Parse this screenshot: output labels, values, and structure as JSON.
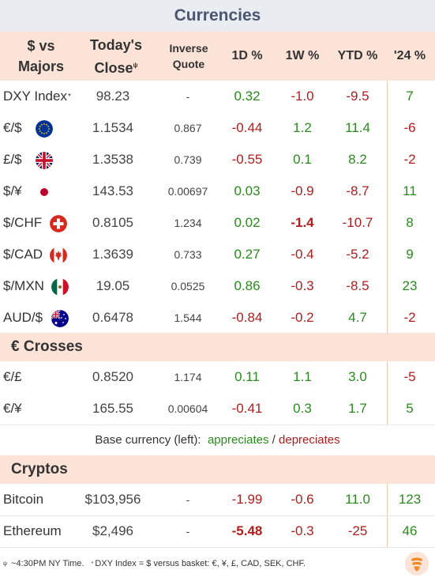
{
  "title": "Currencies",
  "header": {
    "col1": [
      "$ vs",
      "Majors"
    ],
    "col2": [
      "Today's",
      "Close"
    ],
    "col2_sup": "ψ",
    "col3": [
      "Inverse",
      "Quote"
    ],
    "col4": "1D %",
    "col5": "1W %",
    "col6": "YTD %",
    "col7": "'24 %"
  },
  "majors": [
    {
      "label": "DXY Index",
      "sup": "*",
      "flag": "",
      "close": "98.23",
      "inverse": "-",
      "d1": "0.32",
      "w1": "-1.0",
      "ytd": "-9.5",
      "y24": "7",
      "c": [
        "green",
        "red",
        "red",
        "green"
      ]
    },
    {
      "label": "€/$",
      "flag": "eu",
      "close": "1.1534",
      "inverse": "0.867",
      "d1": "-0.44",
      "w1": "1.2",
      "ytd": "11.4",
      "y24": "-6",
      "c": [
        "red",
        "green",
        "green",
        "red"
      ]
    },
    {
      "label": "£/$",
      "flag": "uk",
      "close": "1.3538",
      "inverse": "0.739",
      "d1": "-0.55",
      "w1": "0.1",
      "ytd": "8.2",
      "y24": "-2",
      "c": [
        "red",
        "green",
        "green",
        "red"
      ]
    },
    {
      "label": "$/¥",
      "flag": "jp",
      "close": "143.53",
      "inverse": "0.00697",
      "d1": "0.03",
      "w1": "-0.9",
      "ytd": "-8.7",
      "y24": "11",
      "c": [
        "green",
        "red",
        "red",
        "green"
      ]
    },
    {
      "label": "$/CHF",
      "flag": "ch",
      "close": "0.8105",
      "inverse": "1.234",
      "d1": "0.02",
      "w1": "-1.4",
      "ytd": "-10.7",
      "y24": "8",
      "c": [
        "green",
        "red bold",
        "red",
        "green"
      ]
    },
    {
      "label": "$/CAD",
      "flag": "ca",
      "close": "1.3639",
      "inverse": "0.733",
      "d1": "0.27",
      "w1": "-0.4",
      "ytd": "-5.2",
      "y24": "9",
      "c": [
        "green",
        "red",
        "red",
        "green"
      ]
    },
    {
      "label": "$/MXN",
      "flag": "mx",
      "close": "19.05",
      "inverse": "0.0525",
      "d1": "0.86",
      "w1": "-0.3",
      "ytd": "-8.5",
      "y24": "23",
      "c": [
        "green",
        "red",
        "red",
        "green"
      ]
    },
    {
      "label": "AUD/$",
      "flag": "au",
      "close": "0.6478",
      "inverse": "1.544",
      "d1": "-0.84",
      "w1": "-0.2",
      "ytd": "4.7",
      "y24": "-2",
      "c": [
        "red",
        "red",
        "green",
        "red"
      ]
    }
  ],
  "crosses_title": "€ Crosses",
  "crosses": [
    {
      "label": "€/£",
      "close": "0.8520",
      "inverse": "1.174",
      "d1": "0.11",
      "w1": "1.1",
      "ytd": "3.0",
      "y24": "-5",
      "c": [
        "green",
        "green",
        "green",
        "red"
      ]
    },
    {
      "label": "€/¥",
      "close": "165.55",
      "inverse": "0.00604",
      "d1": "-0.41",
      "w1": "0.3",
      "ytd": "1.7",
      "y24": "5",
      "c": [
        "red",
        "green",
        "green",
        "green"
      ]
    }
  ],
  "legend": {
    "prefix": "Base currency (left): ",
    "appreciates": "appreciates",
    "slash": " / ",
    "depreciates": "depreciates"
  },
  "cryptos_title": "Cryptos",
  "cryptos": [
    {
      "label": "Bitcoin",
      "close": "$103,956",
      "inverse": "-",
      "d1": "-1.99",
      "w1": "-0.6",
      "ytd": "11.0",
      "y24": "123",
      "c": [
        "red",
        "red",
        "green",
        "green"
      ]
    },
    {
      "label": "Ethereum",
      "close": "$2,496",
      "inverse": "-",
      "d1": "-5.48",
      "w1": "-0.3",
      "ytd": "-25",
      "y24": "46",
      "c": [
        "red bold",
        "red",
        "red",
        "green"
      ]
    }
  ],
  "footer": {
    "sup1": "ψ",
    "text1": " ~4:30PM NY Time.",
    "sup2": "*",
    "text2": "DXY Index = $ versus basket: €, ¥, £, CAD, SEK, CHF."
  },
  "colors": {
    "positive": "#2a8a1e",
    "negative": "#b01d1d",
    "section_bg": "#fbe3d7",
    "title_bg": "#e9ecf1"
  }
}
